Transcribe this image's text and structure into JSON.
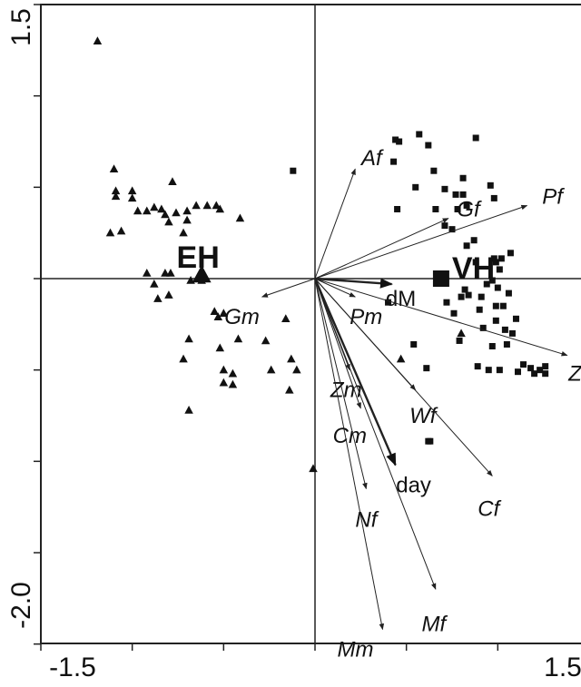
{
  "chart_data": {
    "type": "scatter",
    "title": "",
    "xlabel": "",
    "ylabel": "",
    "xlim": [
      -1.5,
      1.5
    ],
    "ylim": [
      -2.0,
      1.5
    ],
    "x_tick_labels": [
      "-1.5",
      "1.5"
    ],
    "y_tick_labels": [
      "1.5",
      "-2.0"
    ],
    "zero_lines": true,
    "series": [
      {
        "marker": "triangle",
        "points": [
          [
            -1.19,
            1.3
          ],
          [
            -1.1,
            0.6
          ],
          [
            -1.09,
            0.48
          ],
          [
            -1.09,
            0.45
          ],
          [
            -1.0,
            0.48
          ],
          [
            -1.0,
            0.44
          ],
          [
            -0.97,
            0.37
          ],
          [
            -0.92,
            0.37
          ],
          [
            -0.88,
            0.39
          ],
          [
            -0.84,
            0.38
          ],
          [
            -0.82,
            0.35
          ],
          [
            -0.8,
            0.31
          ],
          [
            -0.78,
            0.53
          ],
          [
            -0.76,
            0.36
          ],
          [
            -0.7,
            0.37
          ],
          [
            -0.65,
            0.4
          ],
          [
            -0.59,
            0.4
          ],
          [
            -0.54,
            0.4
          ],
          [
            -0.52,
            0.38
          ],
          [
            -0.41,
            0.33
          ],
          [
            -1.12,
            0.25
          ],
          [
            -1.06,
            0.26
          ],
          [
            -0.72,
            0.25
          ],
          [
            -0.7,
            0.32
          ],
          [
            -0.92,
            0.03
          ],
          [
            -0.88,
            -0.03
          ],
          [
            -0.86,
            -0.11
          ],
          [
            -0.8,
            -0.09
          ],
          [
            -0.82,
            0.03
          ],
          [
            -0.79,
            0.03
          ],
          [
            -0.68,
            -0.01
          ],
          [
            -0.62,
            -0.01
          ],
          [
            -0.55,
            -0.18
          ],
          [
            -0.53,
            -0.21
          ],
          [
            -0.5,
            -0.19
          ],
          [
            -0.69,
            -0.33
          ],
          [
            -0.72,
            -0.44
          ],
          [
            -0.52,
            -0.38
          ],
          [
            -0.5,
            -0.5
          ],
          [
            -0.5,
            -0.57
          ],
          [
            -0.45,
            -0.58
          ],
          [
            -0.45,
            -0.52
          ],
          [
            -0.42,
            -0.33
          ],
          [
            -0.27,
            -0.34
          ],
          [
            -0.24,
            -0.5
          ],
          [
            -0.16,
            -0.22
          ],
          [
            -0.13,
            -0.44
          ],
          [
            -0.1,
            -0.5
          ],
          [
            -0.14,
            -0.61
          ],
          [
            -0.69,
            -0.72
          ],
          [
            -0.01,
            -1.04
          ],
          [
            0.47,
            -0.44
          ],
          [
            0.8,
            -0.3
          ]
        ]
      },
      {
        "marker": "square",
        "points": [
          [
            -0.12,
            0.59
          ],
          [
            0.45,
            0.38
          ],
          [
            0.44,
            0.76
          ],
          [
            0.46,
            0.75
          ],
          [
            0.43,
            0.64
          ],
          [
            0.55,
            0.5
          ],
          [
            0.65,
            0.59
          ],
          [
            0.71,
            0.49
          ],
          [
            0.77,
            0.46
          ],
          [
            0.81,
            0.46
          ],
          [
            0.81,
            0.55
          ],
          [
            0.83,
            0.4
          ],
          [
            0.78,
            0.38
          ],
          [
            0.66,
            0.38
          ],
          [
            0.75,
            0.27
          ],
          [
            0.83,
            0.18
          ],
          [
            0.87,
            0.21
          ],
          [
            0.88,
            0.09
          ],
          [
            0.98,
            0.11
          ],
          [
            0.99,
            0.09
          ],
          [
            1.02,
            0.11
          ],
          [
            1.07,
            0.14
          ],
          [
            0.94,
            -0.03
          ],
          [
            1.0,
            -0.05
          ],
          [
            0.82,
            -0.06
          ],
          [
            0.84,
            -0.09
          ],
          [
            0.8,
            -0.1
          ],
          [
            0.91,
            -0.1
          ],
          [
            1.03,
            -0.15
          ],
          [
            1.06,
            -0.08
          ],
          [
            0.72,
            -0.13
          ],
          [
            0.76,
            -0.19
          ],
          [
            0.99,
            -0.15
          ],
          [
            0.99,
            -0.23
          ],
          [
            1.1,
            -0.22
          ],
          [
            1.04,
            -0.28
          ],
          [
            1.08,
            -0.3
          ],
          [
            0.92,
            -0.27
          ],
          [
            0.79,
            -0.34
          ],
          [
            0.97,
            -0.37
          ],
          [
            0.89,
            -0.48
          ],
          [
            0.95,
            -0.5
          ],
          [
            1.01,
            -0.5
          ],
          [
            1.11,
            -0.51
          ],
          [
            1.14,
            -0.47
          ],
          [
            1.18,
            -0.49
          ],
          [
            1.2,
            -0.52
          ],
          [
            1.23,
            -0.5
          ],
          [
            1.26,
            -0.48
          ],
          [
            1.26,
            -0.52
          ],
          [
            0.54,
            -0.36
          ],
          [
            0.4,
            -0.13
          ],
          [
            0.9,
            -0.17
          ],
          [
            0.61,
            -0.49
          ],
          [
            1.05,
            -0.36
          ],
          [
            1.01,
            0.05
          ],
          [
            0.97,
            -0.01
          ],
          [
            0.71,
            0.29
          ],
          [
            0.57,
            0.79
          ],
          [
            0.62,
            0.73
          ],
          [
            0.88,
            0.77
          ],
          [
            0.96,
            0.51
          ],
          [
            0.98,
            0.44
          ],
          [
            0.63,
            -0.89
          ],
          [
            0.62,
            -0.89
          ]
        ]
      }
    ],
    "centroids": [
      {
        "label": "EH",
        "marker": "triangle",
        "x": -0.62,
        "y": 0.02
      },
      {
        "label": "VH",
        "marker": "square",
        "x": 0.69,
        "y": 0.0
      }
    ],
    "vectors": [
      {
        "label": "Af",
        "x": 0.22,
        "y": 0.6,
        "italic": true
      },
      {
        "label": "Gf",
        "x": 0.73,
        "y": 0.33,
        "italic": true
      },
      {
        "label": "Pf",
        "x": 1.16,
        "y": 0.4,
        "italic": true
      },
      {
        "label": "Gm",
        "x": -0.29,
        "y": -0.1,
        "italic": true
      },
      {
        "label": "dM",
        "x": 0.42,
        "y": -0.03,
        "italic": false,
        "bold_arrow": true
      },
      {
        "label": "Pm",
        "x": 0.22,
        "y": -0.1,
        "italic": true
      },
      {
        "label": "Zf",
        "x": 1.38,
        "y": -0.42,
        "italic": true
      },
      {
        "label": "Zm",
        "x": 0.19,
        "y": -0.5,
        "italic": true
      },
      {
        "label": "Wf",
        "x": 0.55,
        "y": -0.61,
        "italic": true
      },
      {
        "label": "Cm",
        "x": 0.25,
        "y": -0.71,
        "italic": true
      },
      {
        "label": "day",
        "x": 0.44,
        "y": -1.02,
        "italic": false,
        "bold_arrow": true
      },
      {
        "label": "Cf",
        "x": 0.97,
        "y": -1.08,
        "italic": true
      },
      {
        "label": "Nf",
        "x": 0.28,
        "y": -1.15,
        "italic": true
      },
      {
        "label": "Mf",
        "x": 0.66,
        "y": -1.7,
        "italic": true
      },
      {
        "label": "Mm",
        "x": 0.37,
        "y": -1.92,
        "italic": true
      }
    ]
  }
}
